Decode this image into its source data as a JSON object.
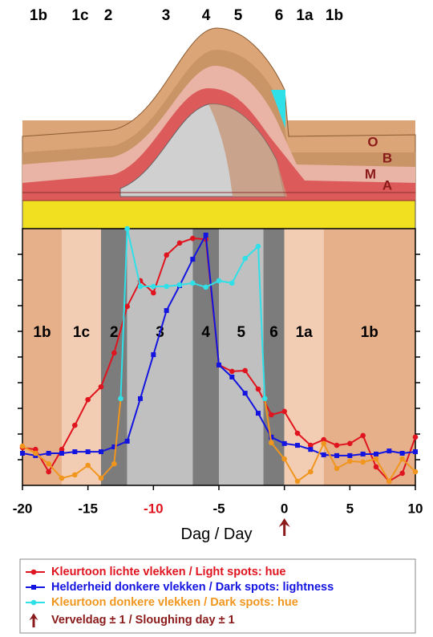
{
  "illustration": {
    "stage_labels": [
      "1b",
      "1c",
      "2",
      "3",
      "4",
      "5",
      "6",
      "1a",
      "1b"
    ],
    "layer_labels": [
      "O",
      "B",
      "M",
      "A"
    ]
  },
  "chart_data": {
    "type": "line",
    "xlabel_nl": "Dag",
    "xlabel_en": "Day",
    "xlim": [
      -20,
      10
    ],
    "xticks": [
      -20,
      -15,
      -10,
      -5,
      0,
      5,
      10
    ],
    "highlight_tick": 2,
    "highlight_color": "#e0141e",
    "ylim": [
      0,
      100
    ],
    "yticks": [
      10,
      20,
      30,
      40,
      50,
      60,
      70,
      80,
      90
    ],
    "bands": [
      {
        "label": "1b",
        "start": -20,
        "end": -17,
        "color": "#e6b08a"
      },
      {
        "label": "1c",
        "start": -17,
        "end": -14,
        "color": "#f3cdb3"
      },
      {
        "label": "2",
        "start": -14,
        "end": -12,
        "color": "#7c7c7c"
      },
      {
        "label": "3",
        "start": -12,
        "end": -7,
        "color": "#c0c0c0"
      },
      {
        "label": "4",
        "start": -7,
        "end": -5,
        "color": "#7c7c7c"
      },
      {
        "label": "5",
        "start": -5,
        "end": -1.6,
        "color": "#c0c0c0"
      },
      {
        "label": "6",
        "start": -1.6,
        "end": 0,
        "color": "#7c7c7c"
      },
      {
        "label": "1a",
        "start": 0,
        "end": 3,
        "color": "#f3cdb3"
      },
      {
        "label": "1b",
        "start": 3,
        "end": 10,
        "color": "#e6b08a"
      }
    ],
    "series": [
      {
        "name": "Kleurtoon lichte vlekken  /  Light spots: hue",
        "color": "#e0141e",
        "marker": "circle",
        "x": [
          -20,
          -19,
          -18,
          -17,
          -16,
          -15,
          -14,
          -13,
          -12,
          -11,
          -10,
          -9,
          -8,
          -7,
          -6,
          -5,
          -4,
          -3,
          -2,
          -1,
          0,
          1,
          2,
          3,
          4,
          5,
          6,
          7,
          8,
          9,
          10
        ],
        "values": [
          14.7,
          14,
          5.3,
          14,
          23.4,
          33.4,
          38.4,
          51.6,
          69.7,
          79.7,
          75,
          89.7,
          94.4,
          96.2,
          95.9,
          46.9,
          44.4,
          44.7,
          37.5,
          27.5,
          28.8,
          20.3,
          15.6,
          17.8,
          15.6,
          16.3,
          19.4,
          7.2,
          1.6,
          4.7,
          18.8
        ]
      },
      {
        "name": "Helderheid donkere vlekken  /  Dark spots: lightness",
        "color": "#1414e0",
        "marker": "square",
        "x": [
          -20,
          -19,
          -18,
          -17,
          -16,
          -15,
          -14,
          -13,
          -12,
          -11,
          -10,
          -9,
          -8,
          -7,
          -6,
          -5,
          -4,
          -3,
          -2,
          -1,
          0,
          1,
          2,
          3,
          4,
          5,
          6,
          7,
          8,
          9,
          10
        ],
        "values": [
          12.5,
          11.6,
          12.5,
          12.5,
          13.1,
          13.1,
          13.1,
          15,
          17.2,
          33.8,
          50.9,
          68.1,
          77.8,
          88.1,
          97.5,
          46.9,
          42.2,
          35.9,
          28.1,
          18.8,
          16.3,
          15.6,
          14,
          11.9,
          11.6,
          11.6,
          12.2,
          12.2,
          13.4,
          12.5,
          13.1
        ]
      },
      {
        "name": "Kleurtoon donkere vlekken  /  Dark spots: hue",
        "color": "#f0961e",
        "marker": "circle",
        "x": [
          -20,
          -19,
          -18,
          -17,
          -16,
          -15,
          -14,
          -13,
          -12.5,
          null,
          -1.5,
          -1,
          0,
          1,
          2,
          3,
          4,
          5,
          6,
          7,
          8,
          9,
          10
        ],
        "values": [
          15.3,
          12.5,
          8.4,
          2.8,
          4.1,
          7.8,
          2.8,
          8.4,
          33.8,
          null,
          33.8,
          16.6,
          10.3,
          1.6,
          5.3,
          16.3,
          6.6,
          9.4,
          9.1,
          10.3,
          1.6,
          10.3,
          5.3
        ]
      },
      {
        "color": "#30e0e8",
        "marker": "circle",
        "x": [
          -12.5,
          -12,
          -11,
          -10,
          -9,
          -8,
          -7,
          -6,
          -5,
          -4,
          -3,
          -2,
          -1.5
        ],
        "values": [
          33.8,
          100,
          77.5,
          77.5,
          77.5,
          78.1,
          78.8,
          77.2,
          79.7,
          78.8,
          88.4,
          93.1,
          33.8
        ]
      }
    ],
    "event_x": 0,
    "event_label": "Verveldag ± 1  /  Sloughing day ± 1",
    "event_color": "#8b1a1a"
  }
}
